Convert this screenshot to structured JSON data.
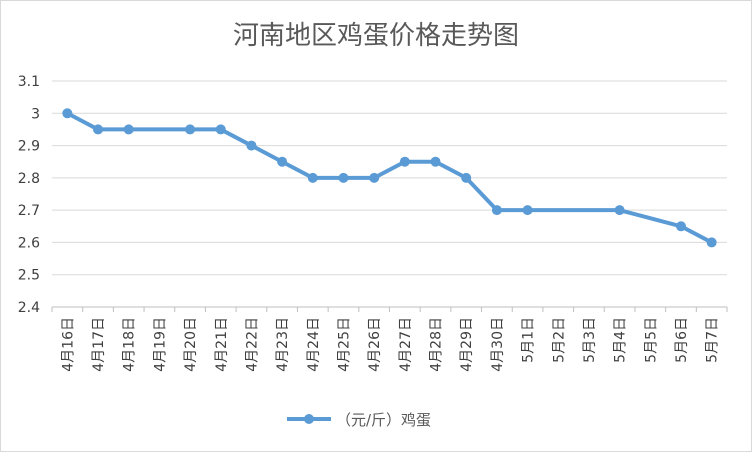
{
  "chart_data": {
    "type": "line",
    "title": "河南地区鸡蛋价格走势图",
    "categories": [
      "4月16日",
      "4月17日",
      "4月18日",
      "4月19日",
      "4月20日",
      "4月21日",
      "4月22日",
      "4月23日",
      "4月24日",
      "4月25日",
      "4月26日",
      "4月27日",
      "4月28日",
      "4月29日",
      "4月30日",
      "5月1日",
      "5月2日",
      "5月3日",
      "5月4日",
      "5月5日",
      "5月6日",
      "5月7日"
    ],
    "series": [
      {
        "name": "（元/斤）鸡蛋",
        "values": [
          3.0,
          2.95,
          2.95,
          null,
          2.95,
          2.95,
          2.9,
          2.85,
          2.8,
          2.8,
          2.8,
          2.85,
          2.85,
          2.8,
          2.7,
          2.7,
          null,
          null,
          2.7,
          null,
          2.65,
          2.6
        ],
        "color": "#5b9bd5"
      }
    ],
    "ylim": [
      2.4,
      3.1
    ],
    "yticks": [
      "2.4",
      "2.5",
      "2.6",
      "2.7",
      "2.8",
      "2.9",
      "3",
      "3.1"
    ],
    "grid": true,
    "legend_position": "bottom",
    "xlabel": "",
    "ylabel": ""
  }
}
